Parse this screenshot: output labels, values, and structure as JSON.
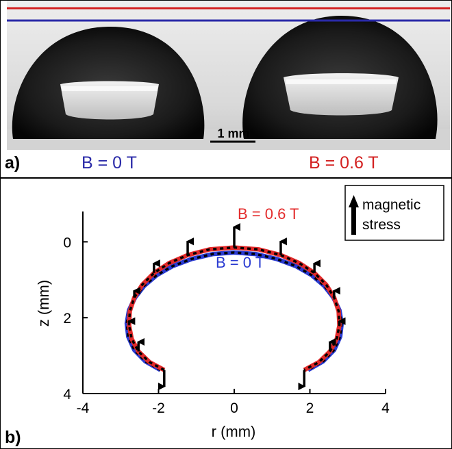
{
  "panel_a": {
    "label": "a)",
    "scale_bar_label": "1 mm",
    "left_caption": "B = 0 T",
    "right_caption": "B = 0.6 T",
    "colors": {
      "zero_field": "#2a2aa8",
      "field_on": "#d32020"
    }
  },
  "panel_b": {
    "label": "b)",
    "legend": {
      "line1": "magnetic",
      "line2": "stress",
      "icon": "arrow-up-icon"
    },
    "curve_labels": {
      "field_on": "B = 0.6 T",
      "zero_field": "B = 0 T"
    },
    "colors": {
      "field_on": "#e32a2a",
      "zero_field": "#2a3bd1",
      "overlay": "#000000"
    }
  },
  "chart_data": {
    "type": "line",
    "xlabel": "r (mm)",
    "ylabel": "z (mm)",
    "xlim": [
      -4,
      4
    ],
    "ylim": [
      4,
      -0.8
    ],
    "x_ticks": [
      -4,
      -2,
      0,
      2,
      4
    ],
    "x_tick_labels": [
      "-4",
      "-2",
      "0",
      "2",
      "4"
    ],
    "y_ticks": [
      0,
      2,
      4
    ],
    "y_tick_labels": [
      "0",
      "2",
      "4"
    ],
    "grid": false,
    "series": [
      {
        "name": "B = 0.6 T",
        "x": [
          -1.85,
          -2.24,
          -2.53,
          -2.71,
          -2.78,
          -2.76,
          -2.64,
          -2.43,
          -2.12,
          -1.72,
          -1.23,
          -0.65,
          0.0,
          0.65,
          1.23,
          1.72,
          2.12,
          2.43,
          2.64,
          2.76,
          2.78,
          2.71,
          2.53,
          2.24,
          1.85
        ],
        "y": [
          3.38,
          3.17,
          2.89,
          2.56,
          2.2,
          1.83,
          1.47,
          1.13,
          0.82,
          0.56,
          0.35,
          0.2,
          0.15,
          0.2,
          0.35,
          0.56,
          0.82,
          1.13,
          1.47,
          1.83,
          2.2,
          2.56,
          2.89,
          3.17,
          3.38
        ]
      },
      {
        "name": "B = 0 T",
        "x": [
          -1.95,
          -2.35,
          -2.64,
          -2.8,
          -2.84,
          -2.78,
          -2.62,
          -2.38,
          -2.05,
          -1.63,
          -1.12,
          -0.56,
          0.0,
          0.56,
          1.12,
          1.63,
          2.05,
          2.38,
          2.62,
          2.78,
          2.84,
          2.8,
          2.64,
          2.35,
          1.95
        ],
        "y": [
          3.38,
          3.15,
          2.85,
          2.5,
          2.15,
          1.8,
          1.47,
          1.16,
          0.88,
          0.64,
          0.45,
          0.32,
          0.28,
          0.32,
          0.45,
          0.64,
          0.88,
          1.16,
          1.47,
          1.8,
          2.15,
          2.5,
          2.85,
          3.15,
          3.38
        ]
      }
    ]
  }
}
